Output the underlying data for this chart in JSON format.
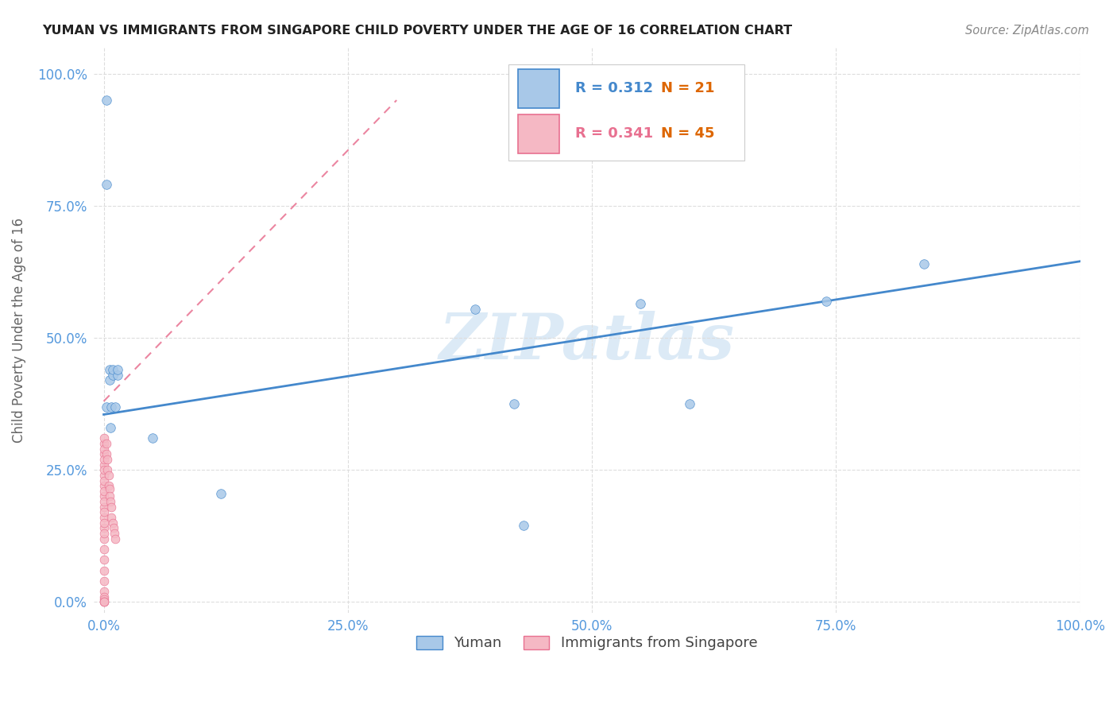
{
  "title": "YUMAN VS IMMIGRANTS FROM SINGAPORE CHILD POVERTY UNDER THE AGE OF 16 CORRELATION CHART",
  "source_text": "Source: ZipAtlas.com",
  "ylabel": "Child Poverty Under the Age of 16",
  "legend_labels": [
    "Yuman",
    "Immigrants from Singapore"
  ],
  "r_yuman": 0.312,
  "n_yuman": 21,
  "r_singapore": 0.341,
  "n_singapore": 45,
  "yuman_color": "#a8c8e8",
  "singapore_color": "#f5b8c4",
  "trend_yuman_color": "#4488cc",
  "trend_singapore_color": "#e87090",
  "watermark": "ZIPatlas",
  "yuman_x": [
    0.003,
    0.003,
    0.003,
    0.006,
    0.006,
    0.007,
    0.008,
    0.009,
    0.009,
    0.012,
    0.014,
    0.014,
    0.05,
    0.12,
    0.38,
    0.42,
    0.55,
    0.6,
    0.74,
    0.84,
    0.43
  ],
  "yuman_y": [
    0.95,
    0.79,
    0.37,
    0.42,
    0.44,
    0.33,
    0.37,
    0.43,
    0.44,
    0.37,
    0.43,
    0.44,
    0.31,
    0.205,
    0.555,
    0.375,
    0.565,
    0.375,
    0.57,
    0.64,
    0.145
  ],
  "singapore_x": [
    0.0,
    0.0,
    0.0,
    0.0,
    0.0,
    0.0,
    0.0,
    0.0,
    0.0,
    0.0,
    0.0,
    0.0,
    0.0,
    0.0,
    0.0,
    0.0,
    0.0,
    0.0,
    0.0,
    0.0,
    0.0,
    0.0,
    0.0,
    0.0,
    0.0,
    0.0,
    0.0,
    0.0,
    0.0,
    0.0,
    0.003,
    0.003,
    0.004,
    0.004,
    0.005,
    0.005,
    0.006,
    0.006,
    0.007,
    0.008,
    0.008,
    0.009,
    0.01,
    0.011,
    0.012
  ],
  "singapore_y": [
    0.3,
    0.28,
    0.26,
    0.24,
    0.22,
    0.2,
    0.18,
    0.16,
    0.14,
    0.12,
    0.1,
    0.08,
    0.06,
    0.04,
    0.02,
    0.01,
    0.005,
    0.0,
    0.0,
    0.0,
    0.31,
    0.29,
    0.27,
    0.25,
    0.23,
    0.21,
    0.19,
    0.17,
    0.15,
    0.13,
    0.3,
    0.28,
    0.27,
    0.25,
    0.24,
    0.22,
    0.215,
    0.2,
    0.19,
    0.18,
    0.16,
    0.15,
    0.14,
    0.13,
    0.12
  ],
  "xlim": [
    -0.01,
    1.0
  ],
  "ylim": [
    -0.02,
    1.05
  ],
  "xticks": [
    0.0,
    0.25,
    0.5,
    0.75,
    1.0
  ],
  "yticks": [
    0.0,
    0.25,
    0.5,
    0.75,
    1.0
  ],
  "xticklabels": [
    "0.0%",
    "25.0%",
    "50.0%",
    "75.0%",
    "100.0%"
  ],
  "yticklabels": [
    "0.0%",
    "25.0%",
    "50.0%",
    "75.0%",
    "100.0%"
  ],
  "background_color": "#ffffff",
  "grid_color": "#e0e0e0",
  "trend_yuman_x0": 0.0,
  "trend_yuman_y0": 0.355,
  "trend_yuman_x1": 1.0,
  "trend_yuman_y1": 0.645,
  "trend_sing_x0": 0.0,
  "trend_sing_y0": 0.38,
  "trend_sing_x1": 0.3,
  "trend_sing_y1": 0.95
}
